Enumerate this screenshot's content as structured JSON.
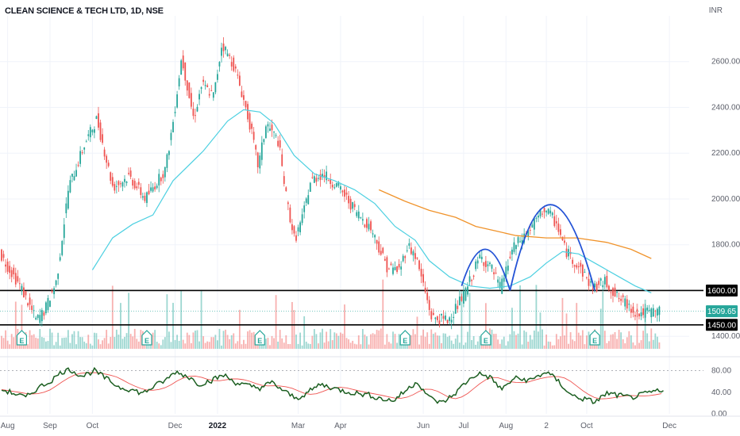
{
  "header": {
    "title": "CLEAN SCIENCE & TECH LTD, 1D, NSE",
    "currency": "INR"
  },
  "colors": {
    "up": "#26a69a",
    "down": "#ef5350",
    "ma_short": "#4dd0e1",
    "ma_long": "#f0932b",
    "pattern": "#2453d6",
    "rsi": "#1b5e20",
    "rsi_ma": "#ef5350",
    "price_badge": "#26a69a",
    "level_badge": "#000000"
  },
  "chart_data": {
    "type": "candlestick",
    "price_axis": {
      "min": 1380,
      "max": 2800,
      "ticks": [
        "2600.00",
        "2400.00",
        "2200.00",
        "2000.00",
        "1800.00",
        "1400.00"
      ],
      "tick_values": [
        2600,
        2400,
        2200,
        2000,
        1800,
        1400
      ]
    },
    "time_axis": {
      "labels": [
        "Aug",
        "Sep",
        "Oct",
        "Dec",
        "2022",
        "Mar",
        "Apr",
        "Jun",
        "Jul",
        "Aug",
        "2",
        "Oct",
        "Dec"
      ],
      "label_day_index": [
        3,
        24,
        45,
        86,
        107,
        147,
        168,
        209,
        229,
        250,
        270,
        290,
        331
      ]
    },
    "price_path": [
      [
        0,
        1760
      ],
      [
        10,
        1620
      ],
      [
        18,
        1470
      ],
      [
        22,
        1510
      ],
      [
        28,
        1640
      ],
      [
        34,
        2050
      ],
      [
        42,
        2240
      ],
      [
        48,
        2350
      ],
      [
        56,
        2050
      ],
      [
        64,
        2100
      ],
      [
        72,
        2000
      ],
      [
        82,
        2130
      ],
      [
        86,
        2350
      ],
      [
        90,
        2620
      ],
      [
        96,
        2350
      ],
      [
        100,
        2500
      ],
      [
        106,
        2450
      ],
      [
        110,
        2680
      ],
      [
        116,
        2580
      ],
      [
        120,
        2460
      ],
      [
        124,
        2320
      ],
      [
        128,
        2140
      ],
      [
        132,
        2330
      ],
      [
        138,
        2250
      ],
      [
        142,
        2000
      ],
      [
        146,
        1820
      ],
      [
        150,
        1920
      ],
      [
        154,
        2080
      ],
      [
        160,
        2110
      ],
      [
        168,
        2050
      ],
      [
        176,
        1950
      ],
      [
        184,
        1870
      ],
      [
        192,
        1700
      ],
      [
        198,
        1690
      ],
      [
        202,
        1800
      ],
      [
        206,
        1750
      ],
      [
        210,
        1620
      ],
      [
        214,
        1480
      ],
      [
        222,
        1470
      ],
      [
        230,
        1580
      ],
      [
        238,
        1750
      ],
      [
        244,
        1690
      ],
      [
        248,
        1610
      ],
      [
        254,
        1780
      ],
      [
        262,
        1860
      ],
      [
        270,
        1960
      ],
      [
        276,
        1890
      ],
      [
        280,
        1780
      ],
      [
        288,
        1690
      ],
      [
        294,
        1610
      ],
      [
        300,
        1640
      ],
      [
        306,
        1570
      ],
      [
        312,
        1530
      ],
      [
        316,
        1500
      ],
      [
        322,
        1505
      ],
      [
        326,
        1510
      ]
    ],
    "moving_average_short": [
      [
        45,
        1690
      ],
      [
        55,
        1830
      ],
      [
        65,
        1890
      ],
      [
        75,
        1930
      ],
      [
        85,
        2080
      ],
      [
        100,
        2210
      ],
      [
        112,
        2340
      ],
      [
        120,
        2390
      ],
      [
        128,
        2380
      ],
      [
        135,
        2330
      ],
      [
        145,
        2190
      ],
      [
        155,
        2110
      ],
      [
        165,
        2080
      ],
      [
        175,
        2040
      ],
      [
        185,
        1980
      ],
      [
        195,
        1880
      ],
      [
        205,
        1820
      ],
      [
        212,
        1730
      ],
      [
        222,
        1660
      ],
      [
        232,
        1620
      ],
      [
        242,
        1610
      ],
      [
        252,
        1620
      ],
      [
        262,
        1660
      ],
      [
        270,
        1720
      ],
      [
        278,
        1770
      ],
      [
        286,
        1760
      ],
      [
        296,
        1710
      ],
      [
        306,
        1660
      ],
      [
        314,
        1620
      ],
      [
        322,
        1590
      ]
    ],
    "moving_average_long": [
      [
        187,
        2040
      ],
      [
        200,
        1990
      ],
      [
        212,
        1950
      ],
      [
        225,
        1920
      ],
      [
        235,
        1880
      ],
      [
        245,
        1860
      ],
      [
        255,
        1840
      ],
      [
        270,
        1830
      ],
      [
        285,
        1830
      ],
      [
        300,
        1810
      ],
      [
        312,
        1780
      ],
      [
        322,
        1740
      ]
    ],
    "horizontal_levels": [
      {
        "value": 1600,
        "label": "1600.00"
      },
      {
        "value": 1450,
        "label": "1450.00"
      }
    ],
    "last_price": {
      "value": 1509.65,
      "label": "1509.65"
    },
    "pattern_arcs": [
      {
        "start_day": 228,
        "start_price": 1620,
        "peak_day": 240,
        "peak_price": 1780,
        "end_day": 252,
        "end_price": 1600
      },
      {
        "start_day": 252,
        "start_price": 1600,
        "peak_day": 272,
        "peak_price": 1975,
        "end_day": 294,
        "end_price": 1600
      }
    ],
    "earnings_markers": [
      {
        "day": 10,
        "label": "E"
      },
      {
        "day": 72,
        "label": "E"
      },
      {
        "day": 128,
        "label": "E"
      },
      {
        "day": 200,
        "label": "E"
      },
      {
        "day": 240,
        "label": "E"
      },
      {
        "day": 294,
        "label": "E"
      }
    ],
    "rsi": {
      "axis_ticks": [
        "80.00",
        "40.00",
        "0.00"
      ],
      "tick_values": [
        80,
        40,
        0
      ],
      "min": 0,
      "max": 100,
      "dashed_level": 80,
      "path": [
        [
          0,
          45
        ],
        [
          6,
          38
        ],
        [
          12,
          30
        ],
        [
          18,
          48
        ],
        [
          24,
          60
        ],
        [
          30,
          78
        ],
        [
          34,
          82
        ],
        [
          40,
          70
        ],
        [
          46,
          80
        ],
        [
          52,
          65
        ],
        [
          58,
          50
        ],
        [
          64,
          45
        ],
        [
          70,
          38
        ],
        [
          76,
          52
        ],
        [
          82,
          64
        ],
        [
          86,
          78
        ],
        [
          92,
          70
        ],
        [
          98,
          55
        ],
        [
          104,
          62
        ],
        [
          110,
          72
        ],
        [
          116,
          58
        ],
        [
          122,
          52
        ],
        [
          128,
          48
        ],
        [
          134,
          58
        ],
        [
          140,
          42
        ],
        [
          146,
          28
        ],
        [
          152,
          40
        ],
        [
          158,
          55
        ],
        [
          164,
          48
        ],
        [
          170,
          42
        ],
        [
          176,
          38
        ],
        [
          182,
          35
        ],
        [
          188,
          28
        ],
        [
          194,
          24
        ],
        [
          200,
          42
        ],
        [
          206,
          60
        ],
        [
          212,
          30
        ],
        [
          218,
          20
        ],
        [
          224,
          35
        ],
        [
          230,
          58
        ],
        [
          236,
          75
        ],
        [
          242,
          68
        ],
        [
          248,
          45
        ],
        [
          254,
          66
        ],
        [
          262,
          62
        ],
        [
          270,
          78
        ],
        [
          276,
          60
        ],
        [
          282,
          35
        ],
        [
          288,
          28
        ],
        [
          294,
          22
        ],
        [
          300,
          38
        ],
        [
          306,
          34
        ],
        [
          312,
          30
        ],
        [
          318,
          36
        ],
        [
          324,
          42
        ],
        [
          328,
          40
        ]
      ]
    }
  }
}
